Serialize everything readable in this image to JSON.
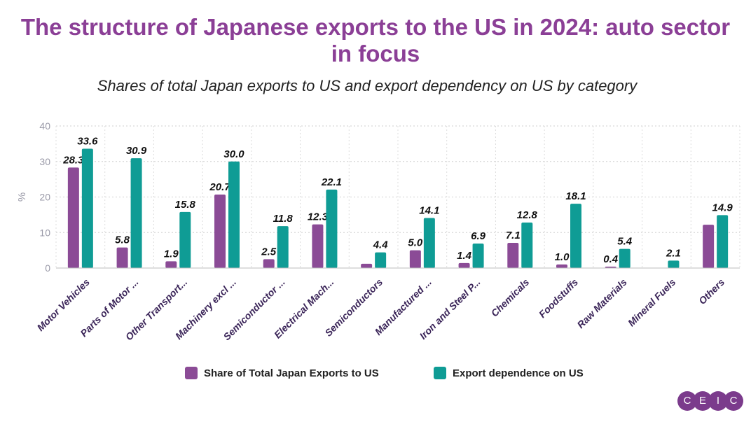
{
  "chart_data": {
    "type": "bar",
    "title": "The structure of Japanese exports to the US in 2024: auto sector in focus",
    "title_lines": [
      "The structure of Japanese exports to the US in 2024: auto sector",
      "in focus"
    ],
    "subtitle": "Shares of total Japan exports to US and export dependency on US by category",
    "ylabel": "%",
    "ylim": [
      0,
      40
    ],
    "yticks": [
      0,
      10,
      20,
      30,
      40
    ],
    "grid": true,
    "categories": [
      "Motor Vehicles",
      "Parts of Motor ...",
      "Other Transport...",
      "Machinery excl ...",
      "Semiconductor ...",
      "Electrical Mach...",
      "Semiconductors",
      "Manufactured ...",
      "Iron and Steel P...",
      "Chemicals",
      "Foodstuffs",
      "Raw Materials",
      "Mineral Fuels",
      "Others"
    ],
    "series": [
      {
        "name": "Share of Total Japan Exports to US",
        "color": "#8b4b96",
        "values": [
          28.3,
          5.8,
          1.9,
          20.7,
          2.5,
          12.3,
          1.2,
          5.0,
          1.4,
          7.1,
          1.0,
          0.4,
          0.1,
          12.2
        ],
        "labels": [
          "28.3",
          "5.8",
          "1.9",
          "20.7",
          "2.5",
          "12.3",
          "",
          "5.0",
          "1.4",
          "7.1",
          "1.0",
          "0.4",
          "",
          ""
        ]
      },
      {
        "name": "Export dependence on US",
        "color": "#0f9c95",
        "values": [
          33.6,
          30.9,
          15.8,
          30.0,
          11.8,
          22.1,
          4.4,
          14.1,
          6.9,
          12.8,
          18.1,
          5.4,
          2.1,
          14.9
        ],
        "labels": [
          "33.6",
          "30.9",
          "15.8",
          "30.0",
          "11.8",
          "22.1",
          "4.4",
          "14.1",
          "6.9",
          "12.8",
          "18.1",
          "5.4",
          "2.1",
          "14.9"
        ]
      }
    ],
    "legend_position": "bottom"
  },
  "logo": {
    "letters": [
      "C",
      "E",
      "I",
      "C"
    ],
    "color": "#7b3b8c"
  }
}
